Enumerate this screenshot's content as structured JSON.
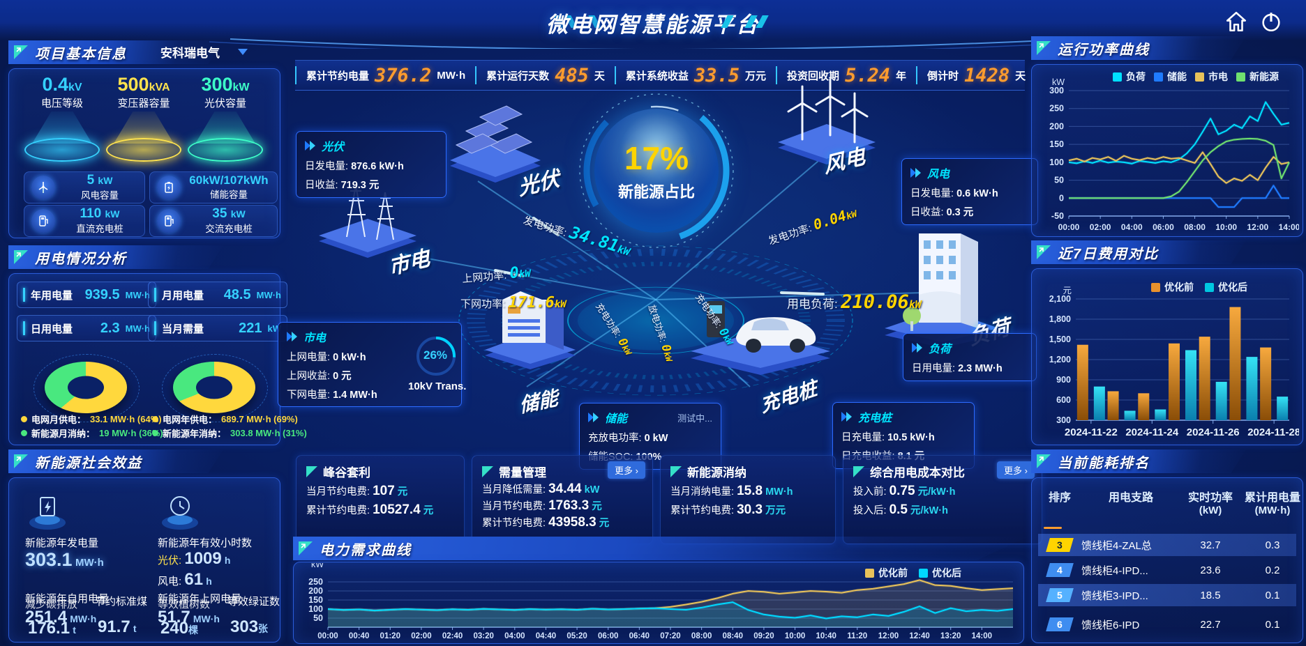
{
  "app": {
    "title": "微电网智慧能源平台"
  },
  "colors": {
    "accent": "#00e5ff",
    "yellow": "#ffd400",
    "orange_value": "#ff9c2e",
    "green": "#49e87f",
    "grid_yellow": "#ffd83d",
    "button_blue": "#2f6bdc"
  },
  "topbar": {
    "stats": [
      {
        "label": "累计节约电量",
        "value": "376.2",
        "unit": "MW·h"
      },
      {
        "label": "累计运行天数",
        "value": "485",
        "unit": "天"
      },
      {
        "label": "累计系统收益",
        "value": "33.5",
        "unit": "万元"
      },
      {
        "label": "投资回收期",
        "value": "5.24",
        "unit": "年"
      },
      {
        "label": "倒计时",
        "value": "1428",
        "unit": "天"
      }
    ]
  },
  "project": {
    "title": "项目基本信息",
    "selector": "安科瑞电气",
    "podiums": [
      {
        "value": "0.4",
        "unit": "kV",
        "label": "电压等级",
        "color": "#35d2ff"
      },
      {
        "value": "500",
        "unit": "kVA",
        "label": "变压器容量",
        "color": "#ffe34d"
      },
      {
        "value": "300",
        "unit": "kW",
        "label": "光伏容量",
        "color": "#3dffc8"
      }
    ],
    "stats": [
      {
        "icon": "wind-turbine-icon",
        "value": "5",
        "unit": "kW",
        "label": "风电容量"
      },
      {
        "icon": "battery-icon",
        "value": "60kW/107kWh",
        "unit": "",
        "label": "储能容量"
      },
      {
        "icon": "dc-charger-icon",
        "value": "110",
        "unit": "kW",
        "label": "直流充电桩"
      },
      {
        "icon": "ac-charger-icon",
        "value": "35",
        "unit": "kW",
        "label": "交流充电桩"
      }
    ]
  },
  "usage": {
    "title": "用电情况分析",
    "chips": [
      {
        "label": "年用电量",
        "value": "939.5",
        "unit": "MW·h"
      },
      {
        "label": "月用电量",
        "value": "48.5",
        "unit": "MW·h"
      },
      {
        "label": "日用电量",
        "value": "2.3",
        "unit": "MW·h"
      },
      {
        "label": "当月需量",
        "value": "221",
        "unit": "kW"
      }
    ],
    "donut_legends": [
      {
        "label": "电网月供电：",
        "value": "33.1 MW·h (64%)",
        "color": "#ffd83d"
      },
      {
        "label": "新能源月消纳：",
        "value": "19 MW·h (36%)",
        "color": "#49e87f"
      },
      {
        "label": "电网年供电：",
        "value": "689.7 MW·h (69%)",
        "color": "#ffd83d"
      },
      {
        "label": "新能源年消纳：",
        "value": "303.8 MW·h (31%)",
        "color": "#49e87f"
      }
    ]
  },
  "benefit": {
    "title": "新能源社会效益",
    "gen_label": "新能源年发电量",
    "gen_value": "303.1",
    "gen_unit": "MW·h",
    "hours_label": "新能源年有效小时数",
    "pv_label": "光伏:",
    "pv_value": "1009",
    "pv_unit": "h",
    "wind_label": "风电:",
    "wind_value": "61",
    "wind_unit": "h",
    "self_label": "新能源年自用电量",
    "self_value": "251.4",
    "self_unit": "MW·h",
    "co2_label": "减少碳排放",
    "co2_value": "176.1",
    "co2_unit": "t",
    "coal_label": "节约标准煤",
    "coal_value": "91.7",
    "coal_unit": "t",
    "export_label": "新能源年上网电量",
    "export_value": "51.7",
    "export_unit": "MW·h",
    "tree_label": "等效植树数",
    "tree_value": "240",
    "tree_unit": "棵",
    "cert_label": "等效绿证数",
    "cert_value": "303",
    "cert_unit": "张"
  },
  "diagram": {
    "center_value": "17%",
    "center_label": "新能源占比",
    "trans_pct": "26%",
    "trans_label": "10kV Trans.",
    "nodes": {
      "pv": "光伏",
      "grid": "市电",
      "storage": "储能",
      "wind": "风电",
      "load": "负荷",
      "charger": "充电桩"
    },
    "flows": {
      "pv_gen": {
        "label": "发电功率:",
        "value": "34.81",
        "unit": "kW"
      },
      "grid_up": {
        "label": "上网功率:",
        "value": "0",
        "unit": "kW"
      },
      "grid_down": {
        "label": "下网功率:",
        "value": "171.6",
        "unit": "kW"
      },
      "wind_gen": {
        "label": "发电功率:",
        "value": "0.04",
        "unit": "kW"
      },
      "load_power": {
        "label": "用电负荷:",
        "value": "210.06",
        "unit": "kW"
      },
      "storage_charge": {
        "label": "充电功率:",
        "value": "0",
        "unit": "kW"
      },
      "storage_discharge": {
        "label": "放电功率:",
        "value": "0",
        "unit": "kW"
      },
      "ev_charge": {
        "label": "充电功率:",
        "value": "0",
        "unit": "kW"
      }
    },
    "boxes": {
      "pv": {
        "title": "光伏",
        "r1l": "日发电量:",
        "r1v": "876.6 kW·h",
        "r2l": "日收益:",
        "r2v": "719.3 元"
      },
      "grid": {
        "title": "市电",
        "r1l": "上网电量:",
        "r1v": "0 kW·h",
        "r2l": "上网收益:",
        "r2v": "0 元",
        "r3l": "下网电量:",
        "r3v": "1.4 MW·h"
      },
      "wind": {
        "title": "风电",
        "r1l": "日发电量:",
        "r1v": "0.6 kW·h",
        "r2l": "日收益:",
        "r2v": "0.3 元"
      },
      "load": {
        "title": "负荷",
        "r1l": "日用电量:",
        "r1v": "2.3 MW·h"
      },
      "storage": {
        "title": "储能",
        "badge": "测试中...",
        "r1l": "充放电功率:",
        "r1v": "0 kW",
        "r2l": "储能SOC:",
        "r2v": "100%"
      },
      "charger": {
        "title": "充电桩",
        "r1l": "日充电量:",
        "r1v": "10.5 kW·h",
        "r2l": "日充电收益:",
        "r2v": "8.1 元"
      }
    }
  },
  "cards": [
    {
      "title": "峰谷套利",
      "rows": [
        {
          "l": "当月节约电费:",
          "v": "107",
          "u": "元"
        },
        {
          "l": "累计节约电费:",
          "v": "10527.4",
          "u": "元"
        }
      ]
    },
    {
      "title": "需量管理",
      "more": "更多 ›",
      "rows": [
        {
          "l": "当月降低需量:",
          "v": "34.44",
          "u": "kW"
        },
        {
          "l": "当月节约电费:",
          "v": "1763.3",
          "u": "元"
        },
        {
          "l": "累计节约电费:",
          "v": "43958.3",
          "u": "元"
        }
      ]
    },
    {
      "title": "新能源消纳",
      "rows": [
        {
          "l": "当月消纳电量:",
          "v": "15.8",
          "u": "MW·h"
        },
        {
          "l": "累计节约电费:",
          "v": "30.3",
          "u": "万元"
        }
      ]
    },
    {
      "title": "综合用电成本对比",
      "more": "更多 ›",
      "rows": [
        {
          "l": "投入前:",
          "v": "0.75",
          "u": "元/kW·h"
        },
        {
          "l": "投入后:",
          "v": "0.5",
          "u": "元/kW·h"
        }
      ]
    }
  ],
  "panel_titles": {
    "demand": "电力需求曲线",
    "run": "运行功率曲线",
    "cost": "近7日费用对比",
    "rank": "当前能耗排名"
  },
  "ranking": {
    "headers": [
      "排序",
      "用电支路",
      "实时功率",
      "累计用电量"
    ],
    "subheaders": [
      "",
      "",
      "(kW)",
      "(MW·h)"
    ],
    "rows": [
      {
        "rank": "3",
        "branch": "馈线柜4-ZAL总",
        "power": "32.7",
        "energy": "0.3"
      },
      {
        "rank": "4",
        "branch": "馈线柜4-IPD...",
        "power": "23.6",
        "energy": "0.2"
      },
      {
        "rank": "5",
        "branch": "馈线柜3-IPD...",
        "power": "18.5",
        "energy": "0.1"
      },
      {
        "rank": "6",
        "branch": "馈线柜6-IPD",
        "power": "22.7",
        "energy": "0.1"
      }
    ]
  },
  "chart_data": [
    {
      "id": "run-power",
      "type": "line",
      "title": "运行功率曲线",
      "ylabel": "kW",
      "ylim": [
        -50,
        300
      ],
      "y_ticks": [
        300,
        250,
        200,
        150,
        100,
        50,
        0,
        -50
      ],
      "x_ticks": [
        "00:00",
        "02:00",
        "04:00",
        "06:00",
        "08:00",
        "10:00",
        "12:00",
        "14:00"
      ],
      "points_per_tick": 4,
      "legend_position": "top-center",
      "grid": true,
      "margins": {
        "l": 50,
        "r": 14,
        "t": 34,
        "b": 24
      },
      "series": [
        {
          "name": "负荷",
          "color": "#00e0ff",
          "values": [
            100,
            97,
            103,
            98,
            105,
            99,
            102,
            100,
            96,
            104,
            101,
            98,
            103,
            100,
            108,
            125,
            150,
            185,
            222,
            178,
            188,
            205,
            195,
            228,
            215,
            268,
            235,
            205,
            210
          ]
        },
        {
          "name": "储能",
          "color": "#1f7bff",
          "values": [
            0,
            0,
            0,
            0,
            0,
            0,
            0,
            0,
            0,
            0,
            0,
            0,
            0,
            0,
            0,
            0,
            0,
            0,
            0,
            -25,
            -25,
            -25,
            0,
            0,
            0,
            0,
            35,
            0,
            0
          ]
        },
        {
          "name": "市电",
          "color": "#e8c25a",
          "values": [
            105,
            110,
            102,
            112,
            108,
            115,
            104,
            118,
            110,
            106,
            112,
            108,
            115,
            110,
            112,
            105,
            98,
            128,
            95,
            60,
            42,
            55,
            48,
            65,
            50,
            85,
            115,
            95,
            100
          ]
        },
        {
          "name": "新能源",
          "color": "#6fe06f",
          "values": [
            0,
            0,
            0,
            0,
            0,
            0,
            0,
            0,
            0,
            0,
            0,
            0,
            0,
            5,
            18,
            45,
            75,
            105,
            128,
            145,
            158,
            163,
            165,
            166,
            165,
            160,
            148,
            55,
            100
          ]
        }
      ]
    },
    {
      "id": "cost-compare",
      "type": "bar",
      "title": "近7日费用对比",
      "ylabel": "元",
      "ylim": [
        300,
        2100
      ],
      "y_ticks": [
        2100,
        1800,
        1500,
        1200,
        900,
        600,
        300
      ],
      "y_tick_labels": [
        "2,100",
        "1,800",
        "1,500",
        "1,200",
        "900",
        "600",
        "300"
      ],
      "categories": [
        "2024-11-22",
        "2024-11-23",
        "2024-11-24",
        "2024-11-25",
        "2024-11-26",
        "2024-11-27",
        "2024-11-28"
      ],
      "x_tick_indices": [
        0,
        2,
        4,
        6
      ],
      "legend_position": "top-right",
      "grid": true,
      "margins": {
        "l": 60,
        "r": 14,
        "t": 40,
        "b": 30
      },
      "series": [
        {
          "name": "优化前",
          "color": "#e8912d",
          "color_top": "#f7a93e",
          "color_bottom": "#8a4d07",
          "values": [
            1420,
            730,
            700,
            1440,
            1540,
            1980,
            1380
          ]
        },
        {
          "name": "优化后",
          "color": "#00c8e0",
          "color_top": "#35e2f5",
          "color_bottom": "#0a7fae",
          "values": [
            800,
            440,
            460,
            1340,
            870,
            1240,
            650
          ]
        }
      ]
    },
    {
      "id": "power-demand",
      "type": "line",
      "title": "电力需求曲线",
      "ylabel": "kW",
      "ylim": [
        0,
        300
      ],
      "y_ticks": [
        250,
        200,
        150,
        100,
        50
      ],
      "x_ticks": [
        "00:00",
        "00:40",
        "01:20",
        "02:00",
        "02:40",
        "03:20",
        "04:00",
        "04:40",
        "05:20",
        "06:00",
        "06:40",
        "07:20",
        "08:00",
        "08:40",
        "09:20",
        "10:00",
        "10:40",
        "11:20",
        "12:00",
        "12:40",
        "13:20",
        "14:00"
      ],
      "points_per_tick": 2,
      "legend_position": "top-right",
      "grid": true,
      "x_font": 11.5,
      "margins": {
        "l": 46,
        "r": 10,
        "t": 14,
        "b": 20
      },
      "series": [
        {
          "name": "优化前",
          "color": "#e8c25a",
          "area": true,
          "values": [
            100,
            95,
            98,
            92,
            96,
            100,
            97,
            94,
            99,
            96,
            101,
            98,
            95,
            100,
            97,
            99,
            96,
            102,
            98,
            100,
            103,
            105,
            112,
            125,
            140,
            160,
            185,
            200,
            195,
            185,
            192,
            200,
            196,
            190,
            205,
            212,
            225,
            238,
            260,
            232,
            228,
            215,
            205,
            210,
            215
          ]
        },
        {
          "name": "优化后",
          "color": "#00d8ff",
          "area": true,
          "values": [
            100,
            95,
            98,
            92,
            96,
            100,
            97,
            94,
            99,
            96,
            101,
            98,
            95,
            100,
            97,
            99,
            96,
            102,
            98,
            100,
            103,
            105,
            100,
            96,
            108,
            125,
            138,
            95,
            70,
            58,
            52,
            65,
            48,
            60,
            55,
            70,
            62,
            85,
            115,
            78,
            105,
            88,
            95,
            90,
            100
          ]
        }
      ]
    },
    {
      "id": "month-mix",
      "type": "pie",
      "slices": [
        {
          "label": "电网月供电",
          "value": 64,
          "color": "#ffd83d"
        },
        {
          "label": "新能源月消纳",
          "value": 36,
          "color": "#49e87f"
        }
      ]
    },
    {
      "id": "year-mix",
      "type": "pie",
      "slices": [
        {
          "label": "电网年供电",
          "value": 69,
          "color": "#ffd83d"
        },
        {
          "label": "新能源年消纳",
          "value": 31,
          "color": "#49e87f"
        }
      ]
    }
  ]
}
